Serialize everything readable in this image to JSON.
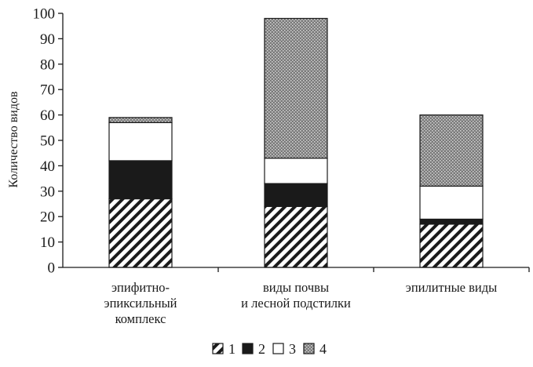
{
  "chart_data": {
    "type": "bar",
    "stacked": true,
    "title": "",
    "ylabel": "Количество видов",
    "xlabel": "",
    "ylim": [
      0,
      100
    ],
    "yticks": [
      0,
      10,
      20,
      30,
      40,
      50,
      60,
      70,
      80,
      90,
      100
    ],
    "categories": [
      [
        "эпифитно-",
        "эпиксильный",
        "комплекс"
      ],
      [
        "виды почвы",
        "и лесной подстилки"
      ],
      [
        "эпилитные виды"
      ]
    ],
    "series": [
      {
        "name": "1",
        "pattern": "diagonal-hatch",
        "values": [
          27,
          24,
          17
        ]
      },
      {
        "name": "2",
        "pattern": "solid-black",
        "values": [
          15,
          9,
          2
        ]
      },
      {
        "name": "3",
        "pattern": "white",
        "values": [
          15,
          10,
          13
        ]
      },
      {
        "name": "4",
        "pattern": "dotted-gray",
        "values": [
          2,
          55,
          28
        ]
      }
    ],
    "legend_position": "bottom"
  }
}
